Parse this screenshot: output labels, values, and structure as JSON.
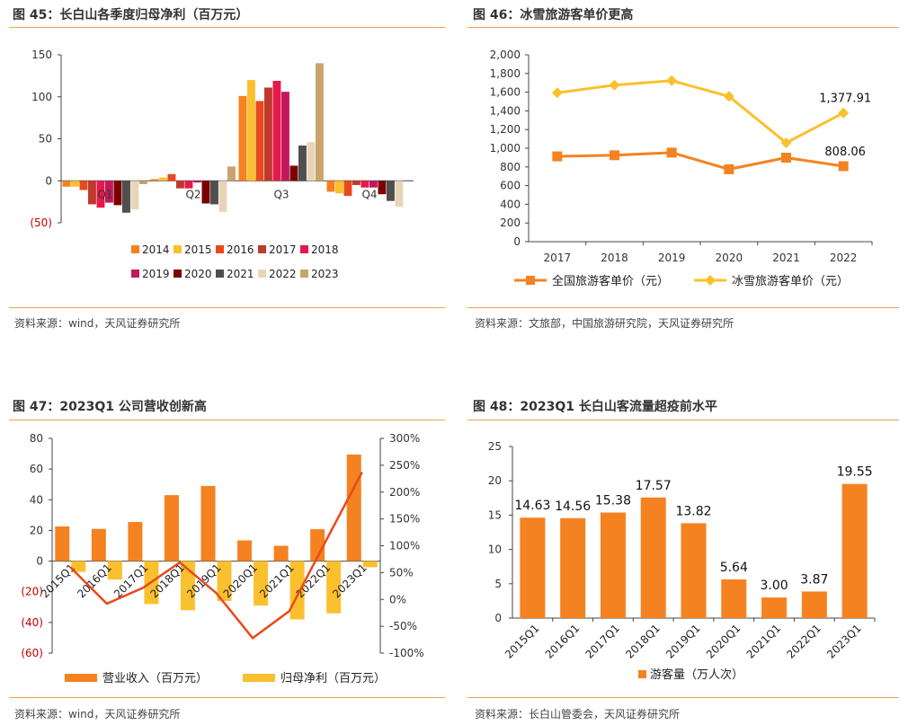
{
  "colors": {
    "accent_line": "#f0a050",
    "negative_tick": "#c00000"
  },
  "fig45": {
    "title": "图 45：长白山各季度归母净利（百万元）",
    "source": "资料来源：wind，天风证券研究所",
    "chart_data": {
      "type": "bar",
      "categories": [
        "Q1",
        "Q2",
        "Q3",
        "Q4"
      ],
      "ylim": [
        -50,
        150
      ],
      "yticks": [
        "(50)",
        "0",
        "50",
        "100",
        "150"
      ],
      "series": [
        {
          "name": "2014",
          "color": "#f58220",
          "values": [
            -7,
            2,
            101,
            -13
          ]
        },
        {
          "name": "2015",
          "color": "#fbc02d",
          "values": [
            -7,
            4,
            120,
            -15
          ]
        },
        {
          "name": "2016",
          "color": "#e8491d",
          "values": [
            -11,
            8,
            95,
            -18
          ]
        },
        {
          "name": "2017",
          "color": "#c0392b",
          "values": [
            -28,
            -9,
            111,
            -5
          ]
        },
        {
          "name": "2018",
          "color": "#e6194b",
          "values": [
            -32,
            -9,
            119,
            -8
          ]
        },
        {
          "name": "2019",
          "color": "#c2185b",
          "values": [
            -26,
            -2,
            106,
            -8
          ]
        },
        {
          "name": "2020",
          "color": "#7b0000",
          "values": [
            -29,
            -27,
            18,
            -16
          ]
        },
        {
          "name": "2021",
          "color": "#4f4f4f",
          "values": [
            -38,
            -28,
            42,
            -24
          ]
        },
        {
          "name": "2022",
          "color": "#e8d5b9",
          "values": [
            -34,
            -37,
            46,
            -31
          ]
        },
        {
          "name": "2023",
          "color": "#c8a46e",
          "values": [
            -4,
            17,
            140,
            null
          ]
        }
      ]
    }
  },
  "fig46": {
    "title": "图 46：冰雪旅游客单价更高",
    "source": "资料来源：文旅部，中国旅游研究院，天风证券研究所",
    "chart_data": {
      "type": "line",
      "x": [
        "2017",
        "2018",
        "2019",
        "2020",
        "2021",
        "2022"
      ],
      "ylim": [
        0,
        2000
      ],
      "yticks": [
        "0",
        "200",
        "400",
        "600",
        "800",
        "1,000",
        "1,200",
        "1,400",
        "1,600",
        "1,800",
        "2,000"
      ],
      "series": [
        {
          "name": "全国旅游客单价（元）",
          "color": "#f58220",
          "marker": "square",
          "values": [
            913,
            925,
            953,
            775,
            899,
            808.06
          ],
          "end_label": "808.06"
        },
        {
          "name": "冰雪旅游客单价（元）",
          "color": "#fbc02d",
          "marker": "diamond",
          "values": [
            1594,
            1675,
            1723,
            1555,
            1058,
            1377.91
          ],
          "end_label": "1,377.91"
        }
      ]
    }
  },
  "fig47": {
    "title": "图 47：2023Q1 公司营收创新高",
    "source": "资料来源：wind，天风证券研究所",
    "chart_data": {
      "type": "bar",
      "categories": [
        "2015Q1",
        "2016Q1",
        "2017Q1",
        "2018Q1",
        "2019Q1",
        "2020Q1",
        "2021Q1",
        "2022Q1",
        "2023Q1"
      ],
      "ylim": [
        -60,
        80
      ],
      "yticks": [
        "(60)",
        "(40)",
        "(20)",
        "0",
        "20",
        "40",
        "60",
        "80"
      ],
      "y2lim": [
        -100,
        300
      ],
      "y2ticks": [
        "-100%",
        "-50%",
        "0%",
        "50%",
        "100%",
        "150%",
        "200%",
        "250%",
        "300%"
      ],
      "series": [
        {
          "name": "营业收入（百万元）",
          "color": "#f58220",
          "values": [
            22.6,
            21,
            25.5,
            43,
            49,
            13.5,
            10,
            20.8,
            69.5
          ]
        },
        {
          "name": "归母净利（百万元）",
          "color": "#fbc02d",
          "values": [
            -7,
            -12,
            -28,
            -32,
            -26,
            -29,
            -38,
            -34,
            -4
          ]
        },
        {
          "name": "",
          "color": "#e8491d",
          "axis": "right",
          "values": [
            60,
            -8,
            22,
            69,
            12,
            -72,
            -22,
            108,
            237
          ]
        }
      ]
    }
  },
  "fig48": {
    "title": "图 48：2023Q1 长白山客流量超疫前水平",
    "source": "资料来源：长白山管委会，天风证券研究所",
    "chart_data": {
      "type": "bar",
      "categories": [
        "2015Q1",
        "2016Q1",
        "2017Q1",
        "2018Q1",
        "2019Q1",
        "2020Q1",
        "2021Q1",
        "2022Q1",
        "2023Q1"
      ],
      "ylim": [
        0,
        25
      ],
      "yticks": [
        "0",
        "5",
        "10",
        "15",
        "20",
        "25"
      ],
      "series": [
        {
          "name": "游客量（万人次）",
          "color": "#f58220",
          "values": [
            14.63,
            14.56,
            15.38,
            17.57,
            13.82,
            5.64,
            3.0,
            3.87,
            19.55
          ],
          "labels": [
            "14.63",
            "14.56",
            "15.38",
            "17.57",
            "13.82",
            "5.64",
            "3.00",
            "3.87",
            "19.55"
          ]
        }
      ]
    }
  }
}
